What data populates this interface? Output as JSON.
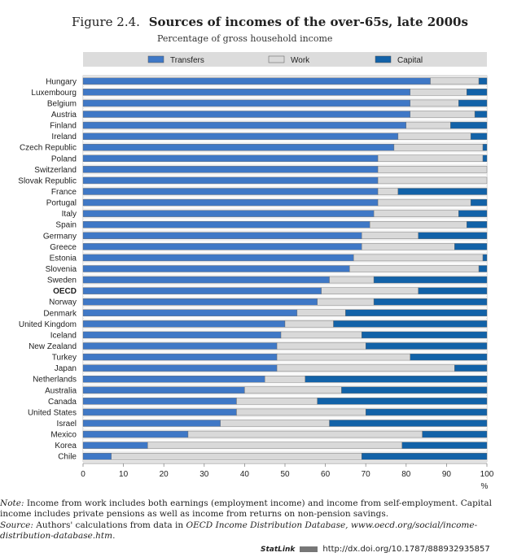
{
  "figure": {
    "number": "Figure 2.4.",
    "title": "Sources of incomes of the over-65s, late 2000s",
    "subtitle": "Percentage of gross household income"
  },
  "chart_data": {
    "type": "bar",
    "orientation": "horizontal",
    "stacked": true,
    "categories": [
      "Hungary",
      "Luxembourg",
      "Belgium",
      "Austria",
      "Finland",
      "Ireland",
      "Czech Republic",
      "Poland",
      "Switzerland",
      "Slovak Republic",
      "France",
      "Portugal",
      "Italy",
      "Spain",
      "Germany",
      "Greece",
      "Estonia",
      "Slovenia",
      "Sweden",
      "OECD",
      "Norway",
      "Denmark",
      "United Kingdom",
      "Iceland",
      "New Zealand",
      "Turkey",
      "Japan",
      "Netherlands",
      "Australia",
      "Canada",
      "United States",
      "Israel",
      "Mexico",
      "Korea",
      "Chile"
    ],
    "highlight_category": "OECD",
    "series": [
      {
        "name": "Transfers",
        "color": "#3f78c6",
        "values": [
          86,
          81,
          81,
          81,
          80,
          78,
          77,
          73,
          73,
          73,
          73,
          73,
          72,
          71,
          69,
          69,
          67,
          66,
          61,
          59,
          58,
          53,
          50,
          49,
          48,
          48,
          48,
          45,
          40,
          38,
          38,
          34,
          26,
          16,
          7
        ]
      },
      {
        "name": "Work",
        "color": "#d9d9d9",
        "values": [
          12,
          14,
          12,
          16,
          11,
          18,
          22,
          26,
          27,
          27,
          5,
          23,
          21,
          24,
          14,
          23,
          32,
          32,
          11,
          24,
          14,
          12,
          12,
          20,
          22,
          33,
          44,
          10,
          24,
          20,
          32,
          27,
          58,
          63,
          62
        ]
      },
      {
        "name": "Capital",
        "color": "#1262a8",
        "values": [
          2,
          5,
          7,
          3,
          9,
          4,
          1,
          1,
          0,
          0,
          22,
          4,
          7,
          5,
          17,
          8,
          1,
          2,
          28,
          17,
          28,
          35,
          38,
          31,
          30,
          19,
          8,
          45,
          36,
          42,
          30,
          39,
          16,
          21,
          31
        ]
      }
    ],
    "xlim": [
      0,
      100
    ],
    "xticks": [
      0,
      10,
      20,
      30,
      40,
      50,
      60,
      70,
      80,
      90,
      100
    ],
    "xunit": "%",
    "legend_position": "top"
  },
  "notes": {
    "note_label": "Note:",
    "note_text": "Income from work includes both earnings (employment income) and income from self-employment. Capital income includes private pensions as well as income from returns on non-pension savings.",
    "source_label": "Source:",
    "source_text_before": "Authors' calculations from data in",
    "source_italic": "OECD Income Distribution Database, www.oecd.org/social/income-distribution-database.htm."
  },
  "statlink": {
    "brand": "StatLink",
    "url": "http://dx.doi.org/10.1787/888932935857"
  }
}
